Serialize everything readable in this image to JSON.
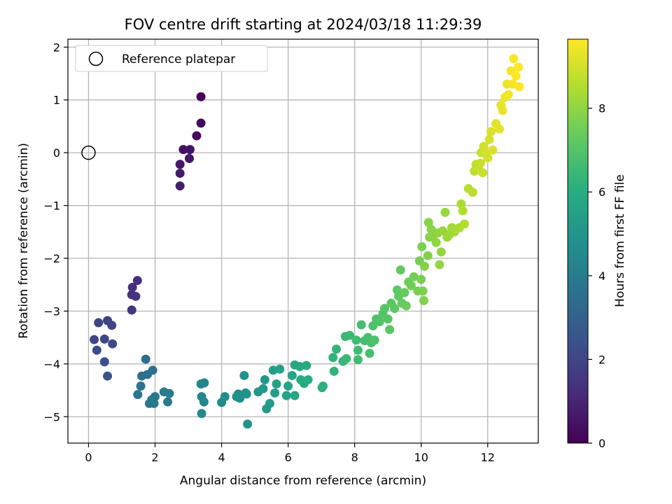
{
  "chart_data": {
    "type": "scatter",
    "title": "FOV centre drift starting at 2024/03/18 11:29:39",
    "xlabel": "Angular distance from reference (arcmin)",
    "ylabel": "Rotation from reference (arcmin)",
    "xlim": [
      -0.62,
      13.52
    ],
    "ylim": [
      -5.5,
      2.15
    ],
    "x_ticks": [
      0,
      2,
      4,
      6,
      8,
      10,
      12
    ],
    "y_ticks": [
      -5,
      -4,
      -3,
      -2,
      -1,
      0,
      1,
      2
    ],
    "x_tick_labels": [
      "0",
      "2",
      "4",
      "6",
      "8",
      "10",
      "12"
    ],
    "y_tick_labels": [
      "−5",
      "−4",
      "−3",
      "−2",
      "−1",
      "0",
      "1",
      "2"
    ],
    "grid": true,
    "legend": {
      "label": "Reference platepar",
      "placement": "upper-left",
      "marker": "open-circle"
    },
    "reference_point": {
      "x": 0,
      "y": 0
    },
    "colorbar": {
      "label": "Hours from first FF file",
      "colormap": "viridis",
      "range": [
        0,
        9.65
      ],
      "ticks": [
        0,
        2,
        4,
        6,
        8
      ],
      "tick_labels": [
        "0",
        "2",
        "4",
        "6",
        "8"
      ]
    },
    "point_fields": [
      "x",
      "y",
      "hours"
    ],
    "points": [
      [
        3.38,
        1.06,
        0.1
      ],
      [
        3.38,
        0.56,
        0.2
      ],
      [
        3.25,
        0.32,
        0.3
      ],
      [
        2.85,
        0.06,
        0.4
      ],
      [
        3.05,
        0.06,
        0.5
      ],
      [
        3.03,
        -0.11,
        0.55
      ],
      [
        2.75,
        -0.22,
        0.6
      ],
      [
        2.75,
        -0.39,
        0.7
      ],
      [
        2.75,
        -0.63,
        0.8
      ],
      [
        1.47,
        -2.42,
        1.3
      ],
      [
        1.32,
        -2.55,
        1.35
      ],
      [
        1.3,
        -2.69,
        1.4
      ],
      [
        1.42,
        -2.72,
        1.45
      ],
      [
        1.3,
        -2.98,
        1.5
      ],
      [
        0.57,
        -3.18,
        1.9
      ],
      [
        0.3,
        -3.22,
        1.95
      ],
      [
        0.7,
        -3.27,
        2.0
      ],
      [
        0.17,
        -3.54,
        2.05
      ],
      [
        0.48,
        -3.53,
        2.1
      ],
      [
        0.72,
        -3.62,
        2.15
      ],
      [
        0.25,
        -3.74,
        2.2
      ],
      [
        0.48,
        -3.96,
        2.3
      ],
      [
        0.57,
        -4.23,
        2.4
      ],
      [
        1.72,
        -3.91,
        3.5
      ],
      [
        1.93,
        -4.12,
        3.55
      ],
      [
        1.77,
        -4.2,
        3.6
      ],
      [
        1.6,
        -4.23,
        3.6
      ],
      [
        1.57,
        -4.42,
        3.7
      ],
      [
        1.48,
        -4.58,
        3.75
      ],
      [
        2.0,
        -4.62,
        3.8
      ],
      [
        1.9,
        -4.68,
        3.85
      ],
      [
        1.83,
        -4.75,
        3.9
      ],
      [
        1.97,
        -4.75,
        3.9
      ],
      [
        2.27,
        -4.53,
        3.95
      ],
      [
        2.43,
        -4.56,
        4.0
      ],
      [
        2.38,
        -4.72,
        4.0
      ],
      [
        3.38,
        -4.38,
        4.3
      ],
      [
        3.48,
        -4.36,
        4.35
      ],
      [
        3.4,
        -4.62,
        4.4
      ],
      [
        3.47,
        -4.72,
        4.45
      ],
      [
        3.4,
        -4.94,
        4.5
      ],
      [
        4.0,
        -4.73,
        4.6
      ],
      [
        4.1,
        -4.62,
        4.65
      ],
      [
        4.45,
        -4.62,
        4.7
      ],
      [
        4.5,
        -4.57,
        4.75
      ],
      [
        4.55,
        -4.65,
        4.8
      ],
      [
        4.68,
        -4.22,
        4.85
      ],
      [
        4.72,
        -4.55,
        4.9
      ],
      [
        4.75,
        -4.57,
        4.9
      ],
      [
        4.78,
        -5.14,
        4.95
      ],
      [
        5.1,
        -4.53,
        5.1
      ],
      [
        5.25,
        -4.47,
        5.15
      ],
      [
        5.3,
        -4.3,
        5.2
      ],
      [
        5.35,
        -4.85,
        5.25
      ],
      [
        5.45,
        -4.75,
        5.3
      ],
      [
        5.55,
        -4.12,
        5.35
      ],
      [
        5.6,
        -4.55,
        5.4
      ],
      [
        5.65,
        -4.38,
        5.45
      ],
      [
        5.75,
        -4.1,
        5.5
      ],
      [
        5.95,
        -4.6,
        5.55
      ],
      [
        6.0,
        -4.42,
        5.6
      ],
      [
        6.12,
        -4.22,
        5.65
      ],
      [
        6.2,
        -4.6,
        5.7
      ],
      [
        6.2,
        -4.02,
        5.75
      ],
      [
        6.35,
        -4.05,
        5.8
      ],
      [
        6.38,
        -4.3,
        5.85
      ],
      [
        6.48,
        -4.37,
        5.9
      ],
      [
        6.55,
        -4.03,
        5.9
      ],
      [
        6.6,
        -4.3,
        5.95
      ],
      [
        7.02,
        -4.45,
        6.1
      ],
      [
        7.05,
        -4.42,
        6.15
      ],
      [
        7.35,
        -3.88,
        6.2
      ],
      [
        7.38,
        -4.14,
        6.25
      ],
      [
        7.45,
        -3.72,
        6.3
      ],
      [
        7.65,
        -3.95,
        6.35
      ],
      [
        7.72,
        -3.48,
        6.4
      ],
      [
        7.75,
        -3.9,
        6.45
      ],
      [
        7.85,
        -3.46,
        6.5
      ],
      [
        8.05,
        -3.55,
        6.55
      ],
      [
        8.1,
        -3.92,
        6.6
      ],
      [
        8.1,
        -3.74,
        6.6
      ],
      [
        8.2,
        -3.26,
        6.65
      ],
      [
        8.3,
        -3.56,
        6.7
      ],
      [
        8.4,
        -3.5,
        6.75
      ],
      [
        8.45,
        -3.8,
        6.75
      ],
      [
        8.5,
        -3.6,
        6.8
      ],
      [
        8.55,
        -3.28,
        6.85
      ],
      [
        8.6,
        -3.55,
        6.85
      ],
      [
        8.65,
        -3.15,
        6.9
      ],
      [
        8.75,
        -3.2,
        6.95
      ],
      [
        8.85,
        -3.05,
        7.0
      ],
      [
        8.9,
        -2.95,
        7.05
      ],
      [
        9.0,
        -3.15,
        7.05
      ],
      [
        9.05,
        -3.35,
        7.1
      ],
      [
        9.1,
        -2.85,
        7.15
      ],
      [
        9.2,
        -2.95,
        7.2
      ],
      [
        9.28,
        -2.6,
        7.2
      ],
      [
        9.32,
        -2.72,
        7.25
      ],
      [
        9.38,
        -2.22,
        7.3
      ],
      [
        9.42,
        -2.85,
        7.3
      ],
      [
        9.5,
        -2.65,
        7.35
      ],
      [
        9.55,
        -2.9,
        7.4
      ],
      [
        9.62,
        -2.45,
        7.45
      ],
      [
        9.7,
        -2.52,
        7.5
      ],
      [
        9.78,
        -2.35,
        7.55
      ],
      [
        9.9,
        -2.62,
        7.6
      ],
      [
        9.95,
        -2.05,
        7.6
      ],
      [
        10.0,
        -2.4,
        7.65
      ],
      [
        10.02,
        -1.78,
        7.7
      ],
      [
        10.05,
        -2.62,
        7.7
      ],
      [
        10.08,
        -2.8,
        7.75
      ],
      [
        10.1,
        -2.15,
        7.8
      ],
      [
        10.2,
        -1.95,
        7.8
      ],
      [
        10.22,
        -1.32,
        7.85
      ],
      [
        10.25,
        -1.6,
        7.85
      ],
      [
        10.3,
        -1.45,
        7.9
      ],
      [
        10.38,
        -1.55,
        7.95
      ],
      [
        10.45,
        -1.7,
        8.0
      ],
      [
        10.5,
        -1.52,
        8.0
      ],
      [
        10.55,
        -2.12,
        8.05
      ],
      [
        10.6,
        -1.88,
        8.05
      ],
      [
        10.65,
        -1.48,
        8.1
      ],
      [
        10.72,
        -1.13,
        8.15
      ],
      [
        10.78,
        -1.6,
        8.2
      ],
      [
        10.85,
        -1.55,
        8.2
      ],
      [
        10.92,
        -1.42,
        8.25
      ],
      [
        11.0,
        -1.5,
        8.3
      ],
      [
        11.05,
        -1.45,
        8.35
      ],
      [
        11.15,
        -1.42,
        8.4
      ],
      [
        11.2,
        -0.97,
        8.45
      ],
      [
        11.25,
        -1.1,
        8.5
      ],
      [
        11.3,
        -1.35,
        8.5
      ],
      [
        11.42,
        -0.68,
        8.6
      ],
      [
        11.55,
        -0.75,
        8.65
      ],
      [
        11.6,
        -0.35,
        8.7
      ],
      [
        11.65,
        -0.22,
        8.75
      ],
      [
        11.72,
        -0.3,
        8.8
      ],
      [
        11.78,
        -0.2,
        8.85
      ],
      [
        11.8,
        0.0,
        8.85
      ],
      [
        11.85,
        -0.38,
        8.9
      ],
      [
        11.88,
        0.12,
        8.95
      ],
      [
        11.95,
        0.0,
        9.0
      ],
      [
        12.0,
        -0.1,
        9.0
      ],
      [
        12.05,
        0.25,
        9.05
      ],
      [
        12.1,
        0.4,
        9.1
      ],
      [
        12.15,
        0.05,
        9.15
      ],
      [
        12.25,
        0.55,
        9.2
      ],
      [
        12.35,
        0.45,
        9.25
      ],
      [
        12.4,
        0.9,
        9.3
      ],
      [
        12.45,
        0.8,
        9.35
      ],
      [
        12.52,
        1.05,
        9.4
      ],
      [
        12.58,
        1.3,
        9.4
      ],
      [
        12.62,
        1.1,
        9.45
      ],
      [
        12.7,
        1.55,
        9.5
      ],
      [
        12.75,
        1.3,
        9.55
      ],
      [
        12.78,
        1.78,
        9.55
      ],
      [
        12.85,
        1.45,
        9.6
      ],
      [
        12.92,
        1.62,
        9.62
      ],
      [
        12.95,
        1.25,
        9.65
      ]
    ]
  }
}
